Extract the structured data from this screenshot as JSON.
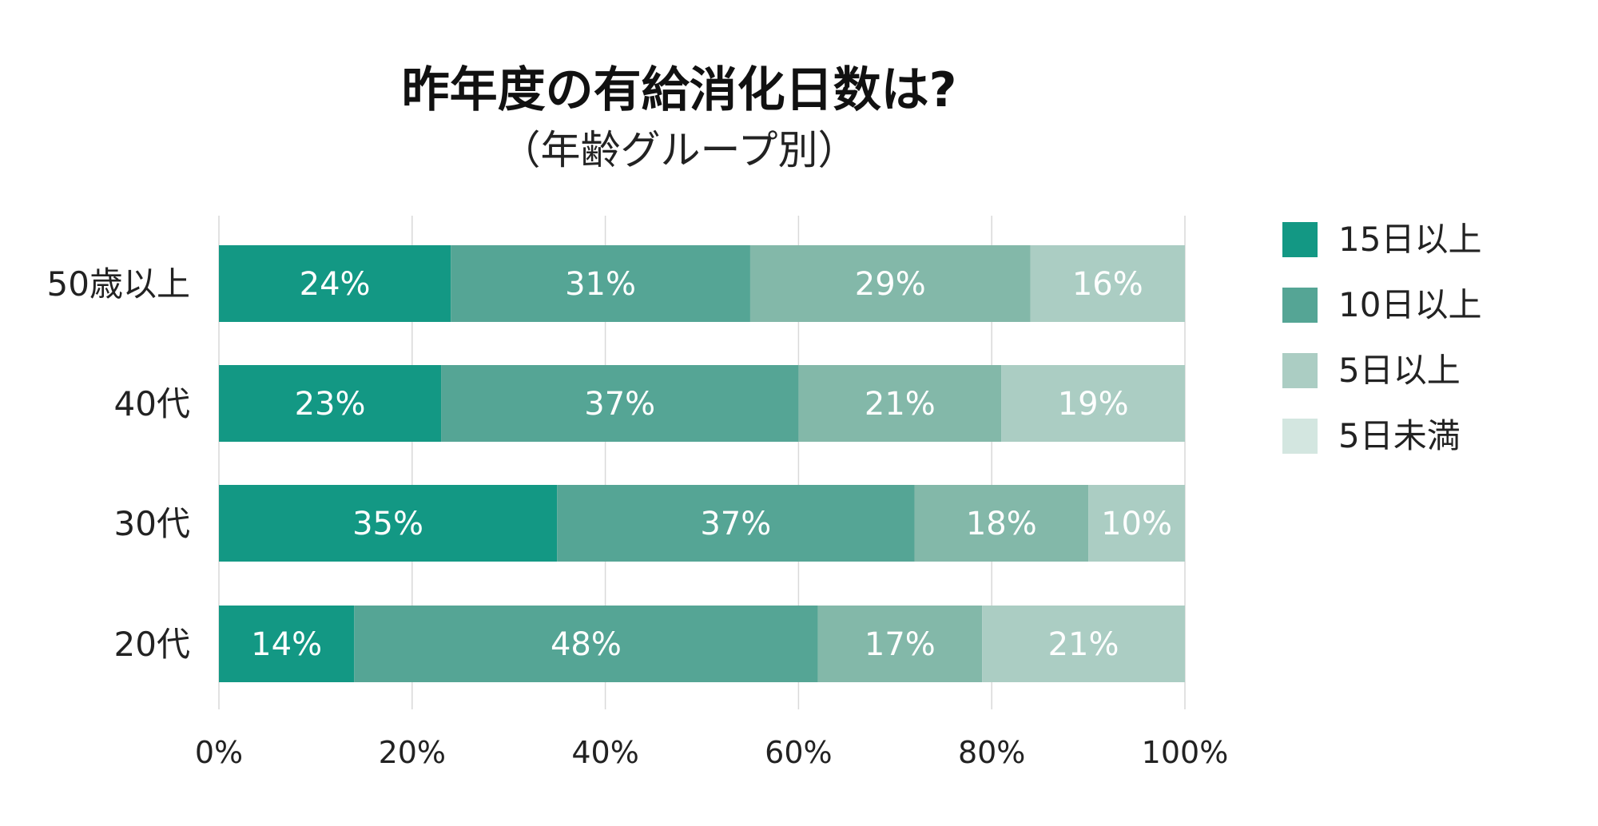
{
  "chart_data": {
    "type": "bar",
    "orientation": "horizontal",
    "stacked": true,
    "title": "昨年度の有給消化日数は?",
    "subtitle": "（年齢グループ別）",
    "categories": [
      "50歳以上",
      "40代",
      "30代",
      "20代"
    ],
    "series": [
      {
        "name": "15日以上",
        "color": "#139884",
        "values": [
          24,
          23,
          35,
          14
        ],
        "labels": [
          "24%",
          "23%",
          "35%",
          "14%"
        ]
      },
      {
        "name": "10日以上",
        "color": "#55a595",
        "values": [
          31,
          37,
          37,
          48
        ],
        "labels": [
          "31%",
          "37%",
          "37%",
          "48%"
        ]
      },
      {
        "name": "5日以上",
        "color": "#83b8a9",
        "values": [
          29,
          21,
          18,
          17
        ],
        "labels": [
          "29%",
          "21%",
          "18%",
          "17%"
        ]
      },
      {
        "name": "5日未満",
        "color": "#abcdc3",
        "values": [
          16,
          19,
          10,
          21
        ],
        "labels": [
          "16%",
          "19%",
          "10%",
          "21%"
        ]
      }
    ],
    "legend_swatch_colors": [
      "#139884",
      "#55a595",
      "#abcdc3",
      "#d3e6e0"
    ],
    "xlim": [
      0,
      100
    ],
    "x_ticks": [
      "0%",
      "20%",
      "40%",
      "60%",
      "80%",
      "100%"
    ],
    "grid": true,
    "legend": "right",
    "label_color": "#ffffff",
    "text_color": "#222222",
    "grid_color": "#d9d9d9"
  }
}
